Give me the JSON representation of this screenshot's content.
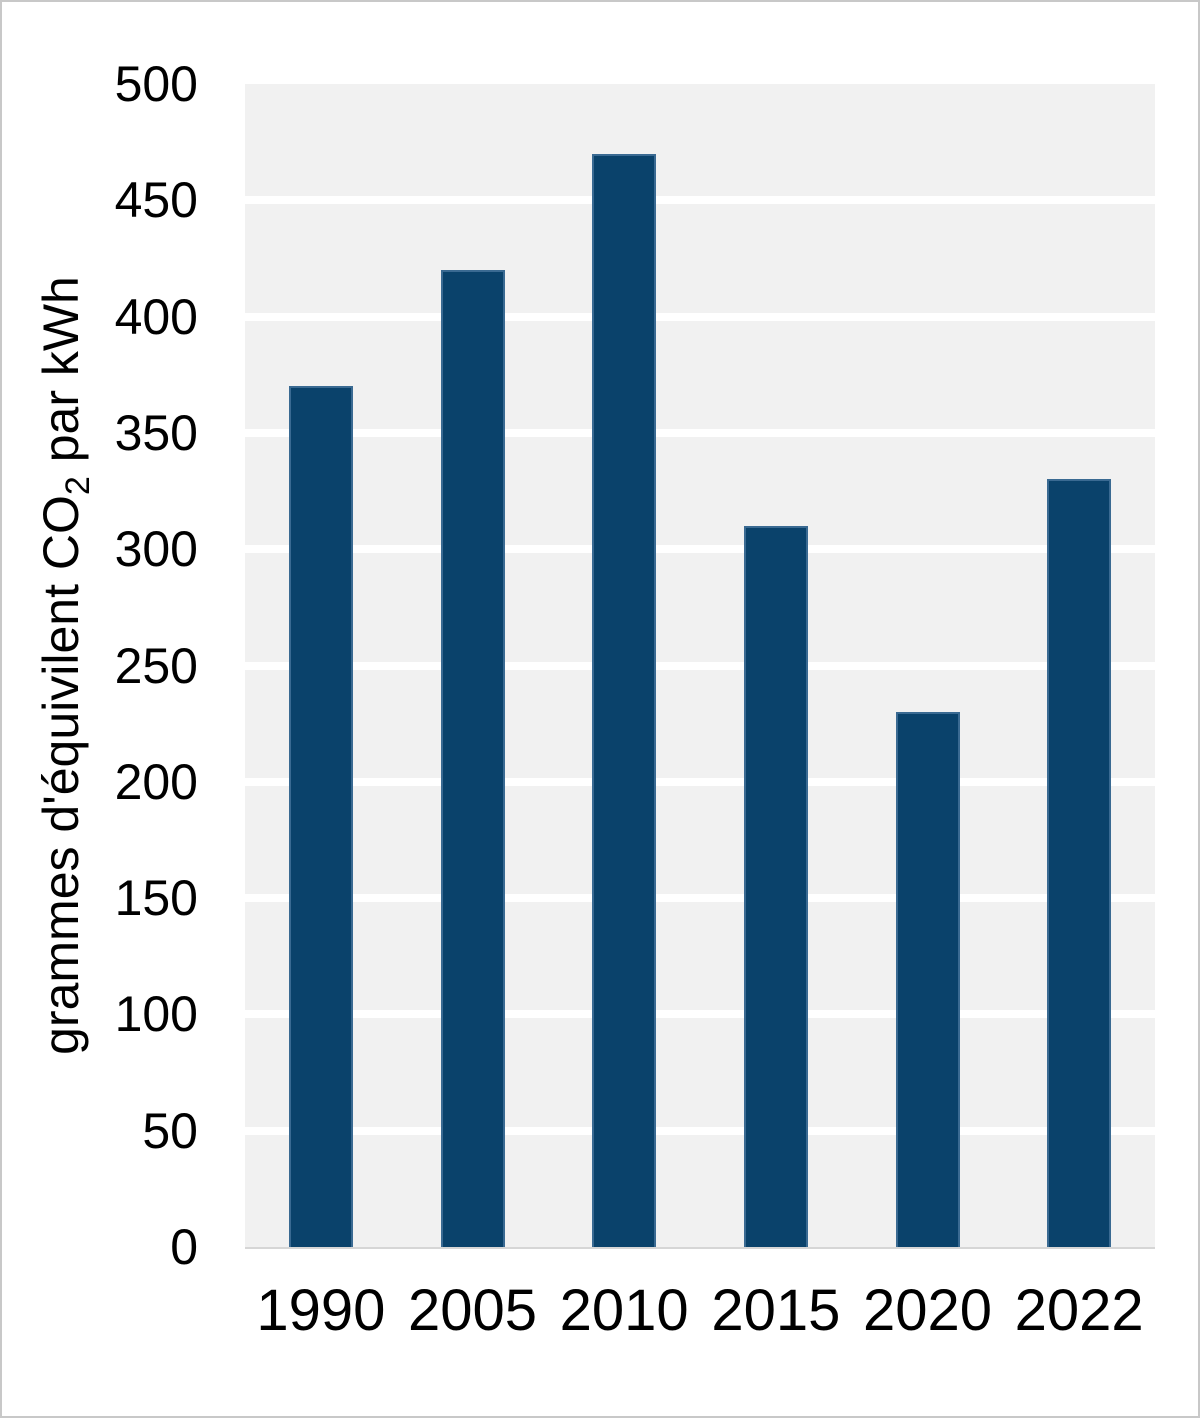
{
  "chart_data": {
    "type": "bar",
    "categories": [
      "1990",
      "2005",
      "2010",
      "2015",
      "2020",
      "2022"
    ],
    "values": [
      370,
      420,
      470,
      310,
      230,
      330
    ],
    "title": "",
    "xlabel": "",
    "ylabel": "grammes d'équivilent CO2 par kWh",
    "ylabel_parts": {
      "prefix": "grammes d'équivilent CO",
      "subscript": "2",
      "suffix": " par kWh"
    },
    "ylim": [
      0,
      500
    ],
    "ytick_interval": 50,
    "yticks": [
      0,
      50,
      100,
      150,
      200,
      250,
      300,
      350,
      400,
      450,
      500
    ],
    "grid": "horizontal-major-on",
    "legend": "none"
  },
  "colors": {
    "bar_fill": "#0a426b",
    "bar_border": "#3a6a92",
    "plot_background": "#f1f1f1",
    "gridline": "#ffffff",
    "axis_line": "#d6d6d6",
    "text": "#000000",
    "page_background": "#ffffff",
    "page_border": "#c8c8c8"
  }
}
